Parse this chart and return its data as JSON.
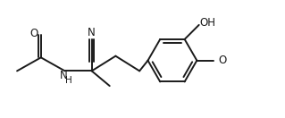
{
  "background_color": "#ffffff",
  "line_color": "#1a1a1a",
  "line_width": 1.4,
  "figsize": [
    3.19,
    1.32
  ],
  "dpi": 100,
  "xlim": [
    0,
    9.5
  ],
  "ylim": [
    0,
    3.9
  ]
}
